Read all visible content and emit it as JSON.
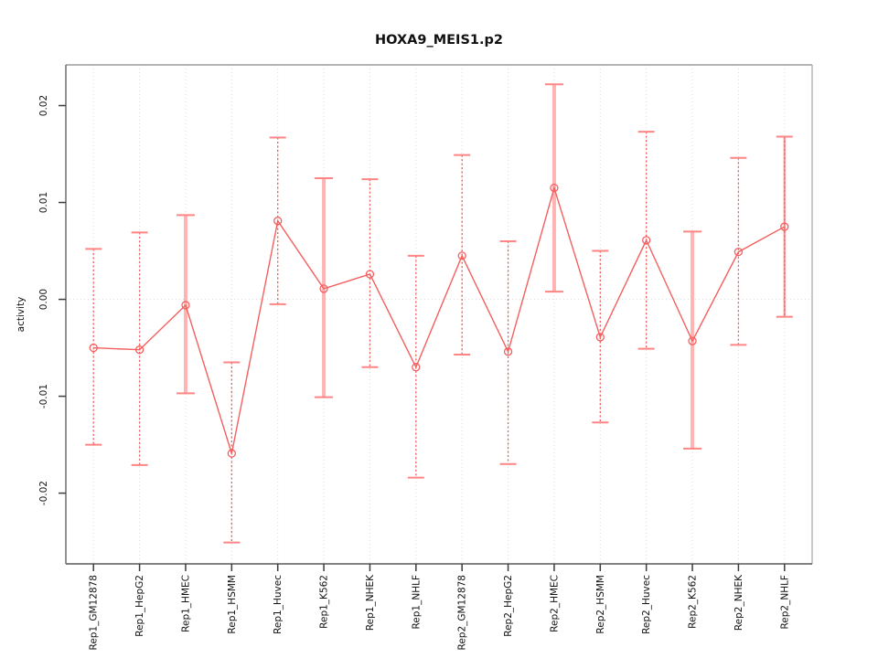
{
  "chart_data": {
    "type": "line",
    "title": "HOXA9_MEIS1.p2",
    "xlabel": "",
    "ylabel": "activity",
    "marker": "open-circle",
    "legend": "none",
    "categories": [
      "Rep1_GM12878",
      "Rep1_HepG2",
      "Rep1_HMEC",
      "Rep1_HSMM",
      "Rep1_Huvec",
      "Rep1_K562",
      "Rep1_NHEK",
      "Rep1_NHLF",
      "Rep2_GM12878",
      "Rep2_HepG2",
      "Rep2_HMEC",
      "Rep2_HSMM",
      "Rep2_Huvec",
      "Rep2_K562",
      "Rep2_NHEK",
      "Rep2_NHLF"
    ],
    "series": [
      {
        "name": "activity",
        "values": [
          -0.005,
          -0.0052,
          -0.0006,
          -0.0159,
          0.0081,
          0.0011,
          0.0026,
          -0.007,
          0.0045,
          -0.0054,
          0.0115,
          -0.0039,
          0.0061,
          -0.0043,
          0.0049,
          0.0075
        ],
        "upper": [
          0.0052,
          0.0069,
          0.0087,
          -0.0065,
          0.0167,
          0.0125,
          0.0124,
          0.0045,
          0.0149,
          0.006,
          0.0222,
          0.005,
          0.0173,
          0.007,
          0.0146,
          0.0168
        ],
        "lower": [
          -0.015,
          -0.0171,
          -0.0097,
          -0.0251,
          -0.0005,
          -0.0101,
          -0.007,
          -0.0184,
          -0.0057,
          -0.017,
          0.0008,
          -0.0127,
          -0.0051,
          -0.0154,
          -0.0047,
          -0.0018
        ]
      }
    ],
    "error_bar_styles": [
      "dotted",
      "dotted",
      "thick",
      "dotted",
      "dotted",
      "thick",
      "dotted",
      "dotted",
      "dotted",
      "dotted",
      "thick",
      "dotted",
      "dotted",
      "thick",
      "dotted",
      "medium"
    ],
    "yticks": [
      0.02,
      0.01,
      0,
      -0.01,
      -0.02
    ],
    "ytick_labels": [
      "0.02",
      "0.01",
      "0.00",
      "-0.01",
      "-0.02"
    ],
    "ylim": [
      -0.0273,
      0.0242
    ],
    "grid": {
      "vertical_dotted": true,
      "zero_line_dotted": true,
      "horizontal_other": false
    },
    "colors": {
      "series": "#f55f5f",
      "error_bar_dotted": "#ef5a5a",
      "error_bar_thick": "#ffb3b3",
      "error_bar_medium": "#ff8f8f",
      "cap": "#ff8585",
      "grid": "#dadada",
      "box_top": "#9c9c9c",
      "box_right": "#b5b5b5",
      "box_bottom": "#595959",
      "box_left": "#6e6e6e",
      "tick": "#3c3c3c",
      "text": "#111111"
    }
  }
}
